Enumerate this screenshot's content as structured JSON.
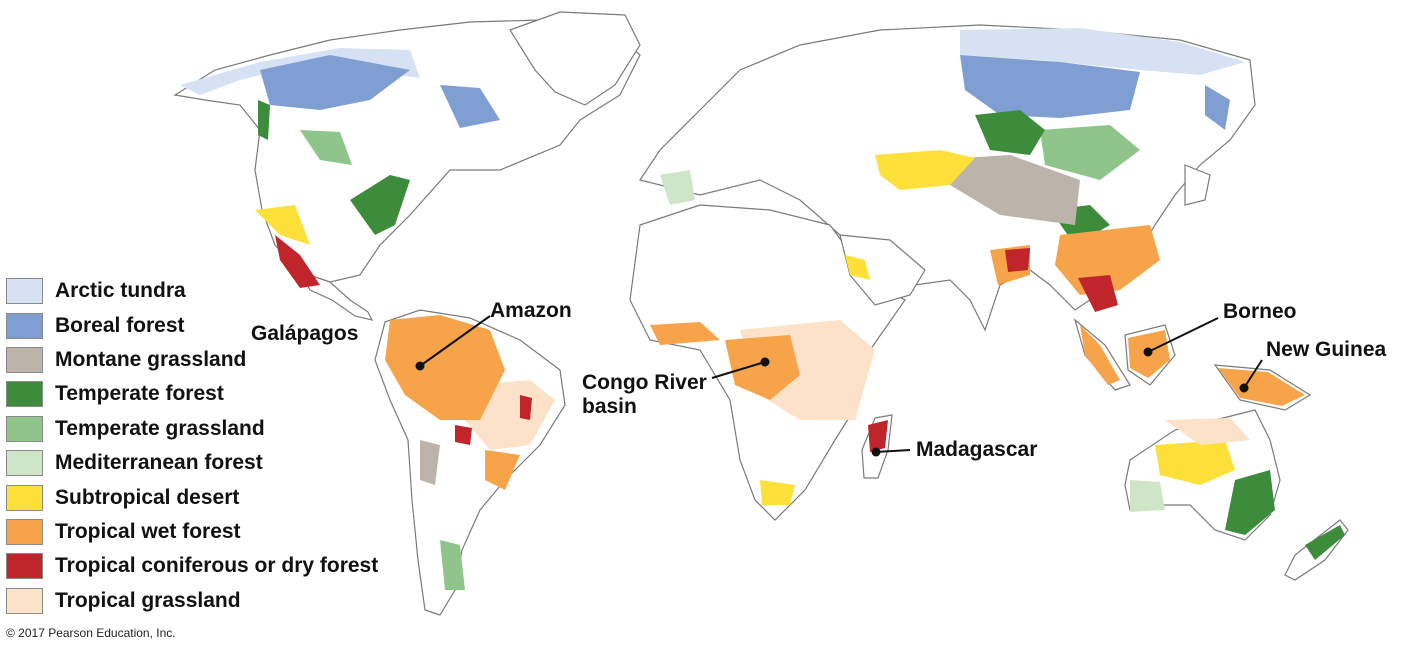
{
  "legend": [
    {
      "label": "Arctic tundra",
      "color": "#d6e1f3"
    },
    {
      "label": "Boreal forest",
      "color": "#7f9fd3"
    },
    {
      "label": "Montane grassland",
      "color": "#bcb4ab"
    },
    {
      "label": "Temperate forest",
      "color": "#3c8c3c"
    },
    {
      "label": "Temperate grassland",
      "color": "#8fc48a"
    },
    {
      "label": "Mediterranean forest",
      "color": "#cfe5c8"
    },
    {
      "label": "Subtropical desert",
      "color": "#fde03a"
    },
    {
      "label": "Tropical wet forest",
      "color": "#f6a34a"
    },
    {
      "label": "Tropical coniferous or dry forest",
      "color": "#c0252b"
    },
    {
      "label": "Tropical grassland",
      "color": "#fbe2c8"
    }
  ],
  "labels": {
    "galapagos": "Galápagos",
    "amazon": "Amazon",
    "congo_line1": "Congo River",
    "congo_line2": "basin",
    "madagascar": "Madagascar",
    "borneo": "Borneo",
    "new_guinea": "New Guinea"
  },
  "copyright": "© 2017 Pearson Education, Inc."
}
